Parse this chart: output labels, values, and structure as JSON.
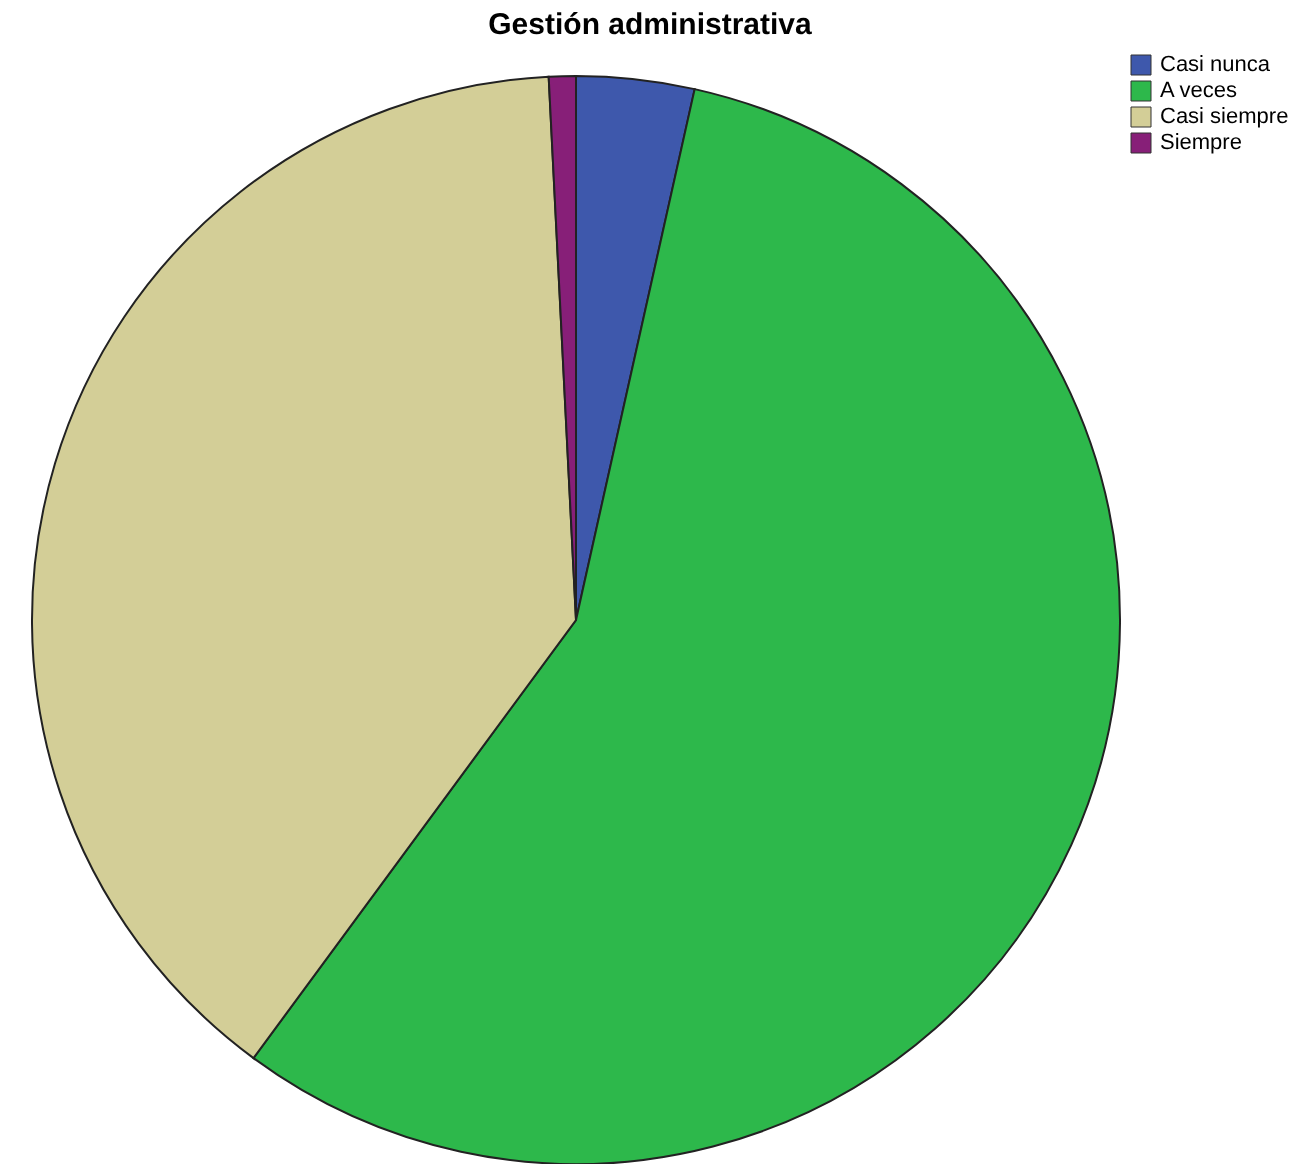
{
  "chart_data": {
    "type": "pie",
    "title": "Gestión administrativa",
    "categories": [
      "Casi nunca",
      "A veces",
      "Casi siempre",
      "Siempre"
    ],
    "values": [
      3.5,
      56.6,
      39.1,
      0.8
    ],
    "colors": [
      "#3e58ac",
      "#2db84b",
      "#d3ce97",
      "#871f78"
    ],
    "legend": "top right"
  }
}
